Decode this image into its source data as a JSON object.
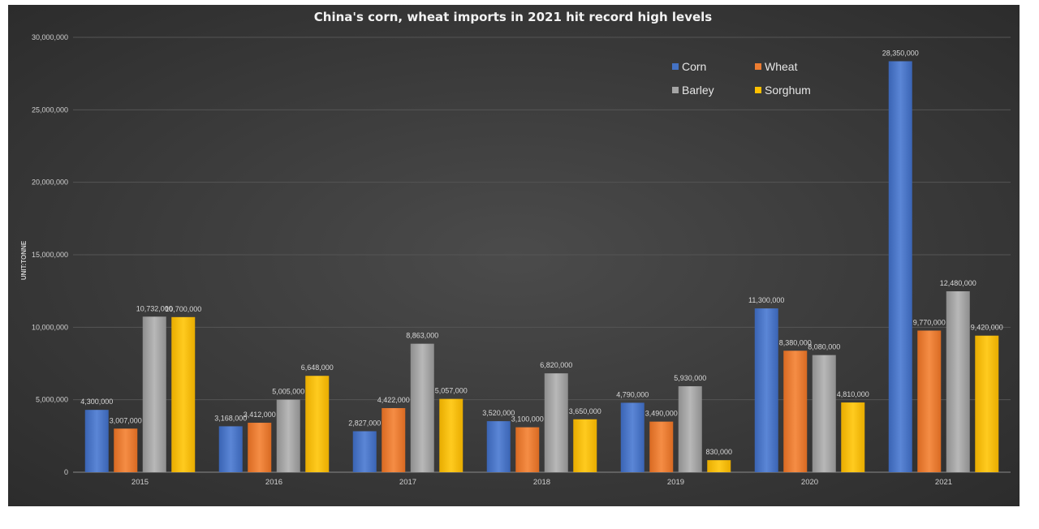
{
  "chart_data": {
    "type": "bar",
    "title": "China's corn, wheat imports in 2021 hit record high levels",
    "ylabel": "UNIT:TONNE",
    "xlabel": "",
    "ylim": [
      0,
      30000000
    ],
    "yticks": [
      0,
      5000000,
      10000000,
      15000000,
      20000000,
      25000000,
      30000000
    ],
    "ytick_labels": [
      "0",
      "5,000,000",
      "10,000,000",
      "15,000,000",
      "20,000,000",
      "25,000,000",
      "30,000,000"
    ],
    "grid": true,
    "legend_position": "top-right",
    "categories": [
      "2015",
      "2016",
      "2017",
      "2018",
      "2019",
      "2020",
      "2021"
    ],
    "series": [
      {
        "name": "Corn",
        "color": "#4472c4",
        "values": [
          4300000,
          3168000,
          2827000,
          3520000,
          4790000,
          11300000,
          28350000
        ],
        "labels": [
          "4,300,000",
          "3,168,000",
          "2,827,000",
          "3,520,000",
          "4,790,000",
          "11,300,000",
          "28,350,000"
        ]
      },
      {
        "name": "Wheat",
        "color": "#ed7d31",
        "values": [
          3007000,
          3412000,
          4422000,
          3100000,
          3490000,
          8380000,
          9770000
        ],
        "labels": [
          "3,007,000",
          "3,412,000",
          "4,422,000",
          "3,100,000",
          "3,490,000",
          "8,380,000",
          "9,770,000"
        ]
      },
      {
        "name": "Barley",
        "color": "#a5a5a5",
        "values": [
          10732000,
          5005000,
          8863000,
          6820000,
          5930000,
          8080000,
          12480000
        ],
        "labels": [
          "10,732,000",
          "5,005,000",
          "8,863,000",
          "6,820,000",
          "5,930,000",
          "8,080,000",
          "12,480,000"
        ]
      },
      {
        "name": "Sorghum",
        "color": "#ffc000",
        "values": [
          10700000,
          6648000,
          5057000,
          3650000,
          830000,
          4810000,
          9420000
        ],
        "labels": [
          "10,700,000",
          "6,648,000",
          "5,057,000",
          "3,650,000",
          "830,000",
          "4,810,000",
          "9,420,000"
        ]
      }
    ]
  }
}
